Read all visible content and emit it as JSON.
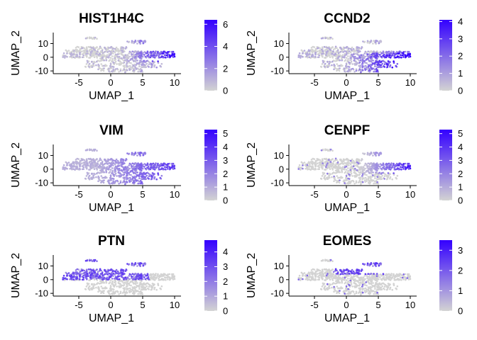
{
  "colors": {
    "low": "#d3d3d3",
    "high": "#3300ff",
    "axis": "#000000"
  },
  "axes": {
    "xlabel": "UMAP_1",
    "ylabel": "UMAP_2",
    "xlim": [
      -9,
      11
    ],
    "ylim": [
      -12,
      18
    ],
    "xticks": [
      -5,
      0,
      5,
      10
    ],
    "yticks": [
      -10,
      0,
      10
    ]
  },
  "chart_data": [
    {
      "type": "scatter",
      "title": "HIST1H4C",
      "colorbar_range": [
        0,
        6.4
      ],
      "colorbar_ticks": [
        0,
        2,
        4,
        6
      ],
      "pattern": "right"
    },
    {
      "type": "scatter",
      "title": "CCND2",
      "colorbar_range": [
        0,
        4.1
      ],
      "colorbar_ticks": [
        0,
        1,
        2,
        3,
        4
      ],
      "pattern": "bottom-right"
    },
    {
      "type": "scatter",
      "title": "VIM",
      "colorbar_range": [
        0,
        5.3
      ],
      "colorbar_ticks": [
        0,
        1,
        2,
        3,
        4,
        5
      ],
      "pattern": "broad-right"
    },
    {
      "type": "scatter",
      "title": "CENPF",
      "colorbar_range": [
        0,
        5.3
      ],
      "colorbar_ticks": [
        0,
        1,
        2,
        3,
        4,
        5
      ],
      "pattern": "sparse-right"
    },
    {
      "type": "scatter",
      "title": "PTN",
      "colorbar_range": [
        0,
        4.8
      ],
      "colorbar_ticks": [
        0,
        1,
        2,
        3,
        4
      ],
      "pattern": "upper-left"
    },
    {
      "type": "scatter",
      "title": "EOMES",
      "colorbar_range": [
        0,
        3.5
      ],
      "colorbar_ticks": [
        0,
        1,
        2,
        3
      ],
      "pattern": "upper-middle"
    }
  ]
}
